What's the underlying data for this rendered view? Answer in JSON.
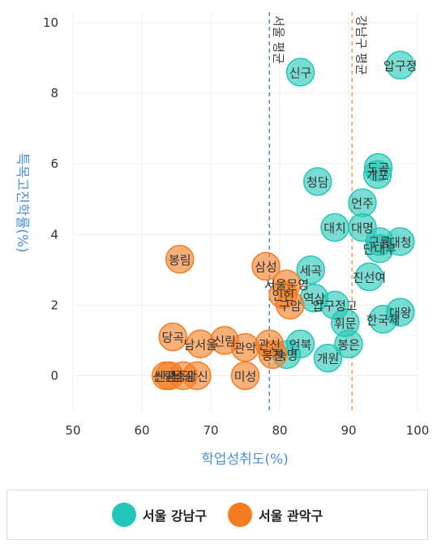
{
  "colors": {
    "gangnam": "#22c7b8",
    "gwanak": "#f47c20",
    "axis_label": "#4a90d9",
    "grid": "#eeeeee"
  },
  "chart_data": {
    "type": "scatter",
    "xlabel": "학업성취도(%)",
    "ylabel": "특목고진학률(%)",
    "xlim": [
      50,
      100
    ],
    "ylim": [
      -1,
      10.3
    ],
    "x_ticks": [
      "50",
      "60",
      "70",
      "80",
      "90",
      "100"
    ],
    "y_ticks": [
      "0",
      "2",
      "4",
      "6",
      "8",
      "10"
    ],
    "grid": true,
    "legend_position": "bottom",
    "reference_lines": [
      {
        "label": "서울 평균",
        "x": 78.5,
        "color": "#4a90d9"
      },
      {
        "label": "강남구 평균",
        "x": 90.5,
        "color": "#f4a259"
      }
    ],
    "series": [
      {
        "name": "서울 강남구",
        "color": "#22c7b8",
        "points": [
          {
            "label": "압구정",
            "x": 97.5,
            "y": 8.8
          },
          {
            "label": "신구",
            "x": 83,
            "y": 8.6
          },
          {
            "label": "도곡",
            "x": 94.3,
            "y": 5.9
          },
          {
            "label": "개포",
            "x": 94.2,
            "y": 5.7
          },
          {
            "label": "청담",
            "x": 85.5,
            "y": 5.5
          },
          {
            "label": "언주",
            "x": 92,
            "y": 4.9
          },
          {
            "label": "대치",
            "x": 88,
            "y": 4.2
          },
          {
            "label": "대명",
            "x": 92,
            "y": 4.2
          },
          {
            "label": "구룡",
            "x": 94.5,
            "y": 3.8
          },
          {
            "label": "대청",
            "x": 97.5,
            "y": 3.8
          },
          {
            "label": "단대부",
            "x": 94.5,
            "y": 3.6
          },
          {
            "label": "세곡",
            "x": 84.5,
            "y": 3.0
          },
          {
            "label": "진선여",
            "x": 93,
            "y": 2.8
          },
          {
            "label": "역삼",
            "x": 85,
            "y": 2.2
          },
          {
            "label": "대왕",
            "x": 97.5,
            "y": 1.8
          },
          {
            "label": "한국체",
            "x": 95,
            "y": 1.6
          },
          {
            "label": "압구정고",
            "x": 88,
            "y": 2.0
          },
          {
            "label": "휘문",
            "x": 89.5,
            "y": 1.5
          },
          {
            "label": "봉은",
            "x": 90,
            "y": 0.9
          },
          {
            "label": "언북",
            "x": 83,
            "y": 0.9
          },
          {
            "label": "개원",
            "x": 87,
            "y": 0.5
          },
          {
            "label": "숙명",
            "x": 81,
            "y": 0.6
          }
        ]
      },
      {
        "name": "서울 관악구",
        "color": "#f47c20",
        "points": [
          {
            "label": "봉림",
            "x": 65.5,
            "y": 3.3
          },
          {
            "label": "삼성",
            "x": 78,
            "y": 3.1
          },
          {
            "label": "서울문영",
            "x": 81,
            "y": 2.6
          },
          {
            "label": "인헌",
            "x": 80.5,
            "y": 2.3
          },
          {
            "label": "구암",
            "x": 81.5,
            "y": 2.0
          },
          {
            "label": "당곡",
            "x": 64.5,
            "y": 1.1
          },
          {
            "label": "남서울",
            "x": 68.5,
            "y": 0.9
          },
          {
            "label": "신림",
            "x": 72,
            "y": 1.0
          },
          {
            "label": "관악",
            "x": 75,
            "y": 0.8
          },
          {
            "label": "관신",
            "x": 78.5,
            "y": 0.9
          },
          {
            "label": "봉천",
            "x": 79,
            "y": 0.6
          },
          {
            "label": "미성",
            "x": 75,
            "y": 0
          },
          {
            "label": "신관",
            "x": 63.5,
            "y": 0
          },
          {
            "label": "신림중",
            "x": 64,
            "y": 0
          },
          {
            "label": "남강",
            "x": 66,
            "y": 0
          },
          {
            "label": "광신",
            "x": 68,
            "y": 0
          }
        ]
      }
    ]
  }
}
